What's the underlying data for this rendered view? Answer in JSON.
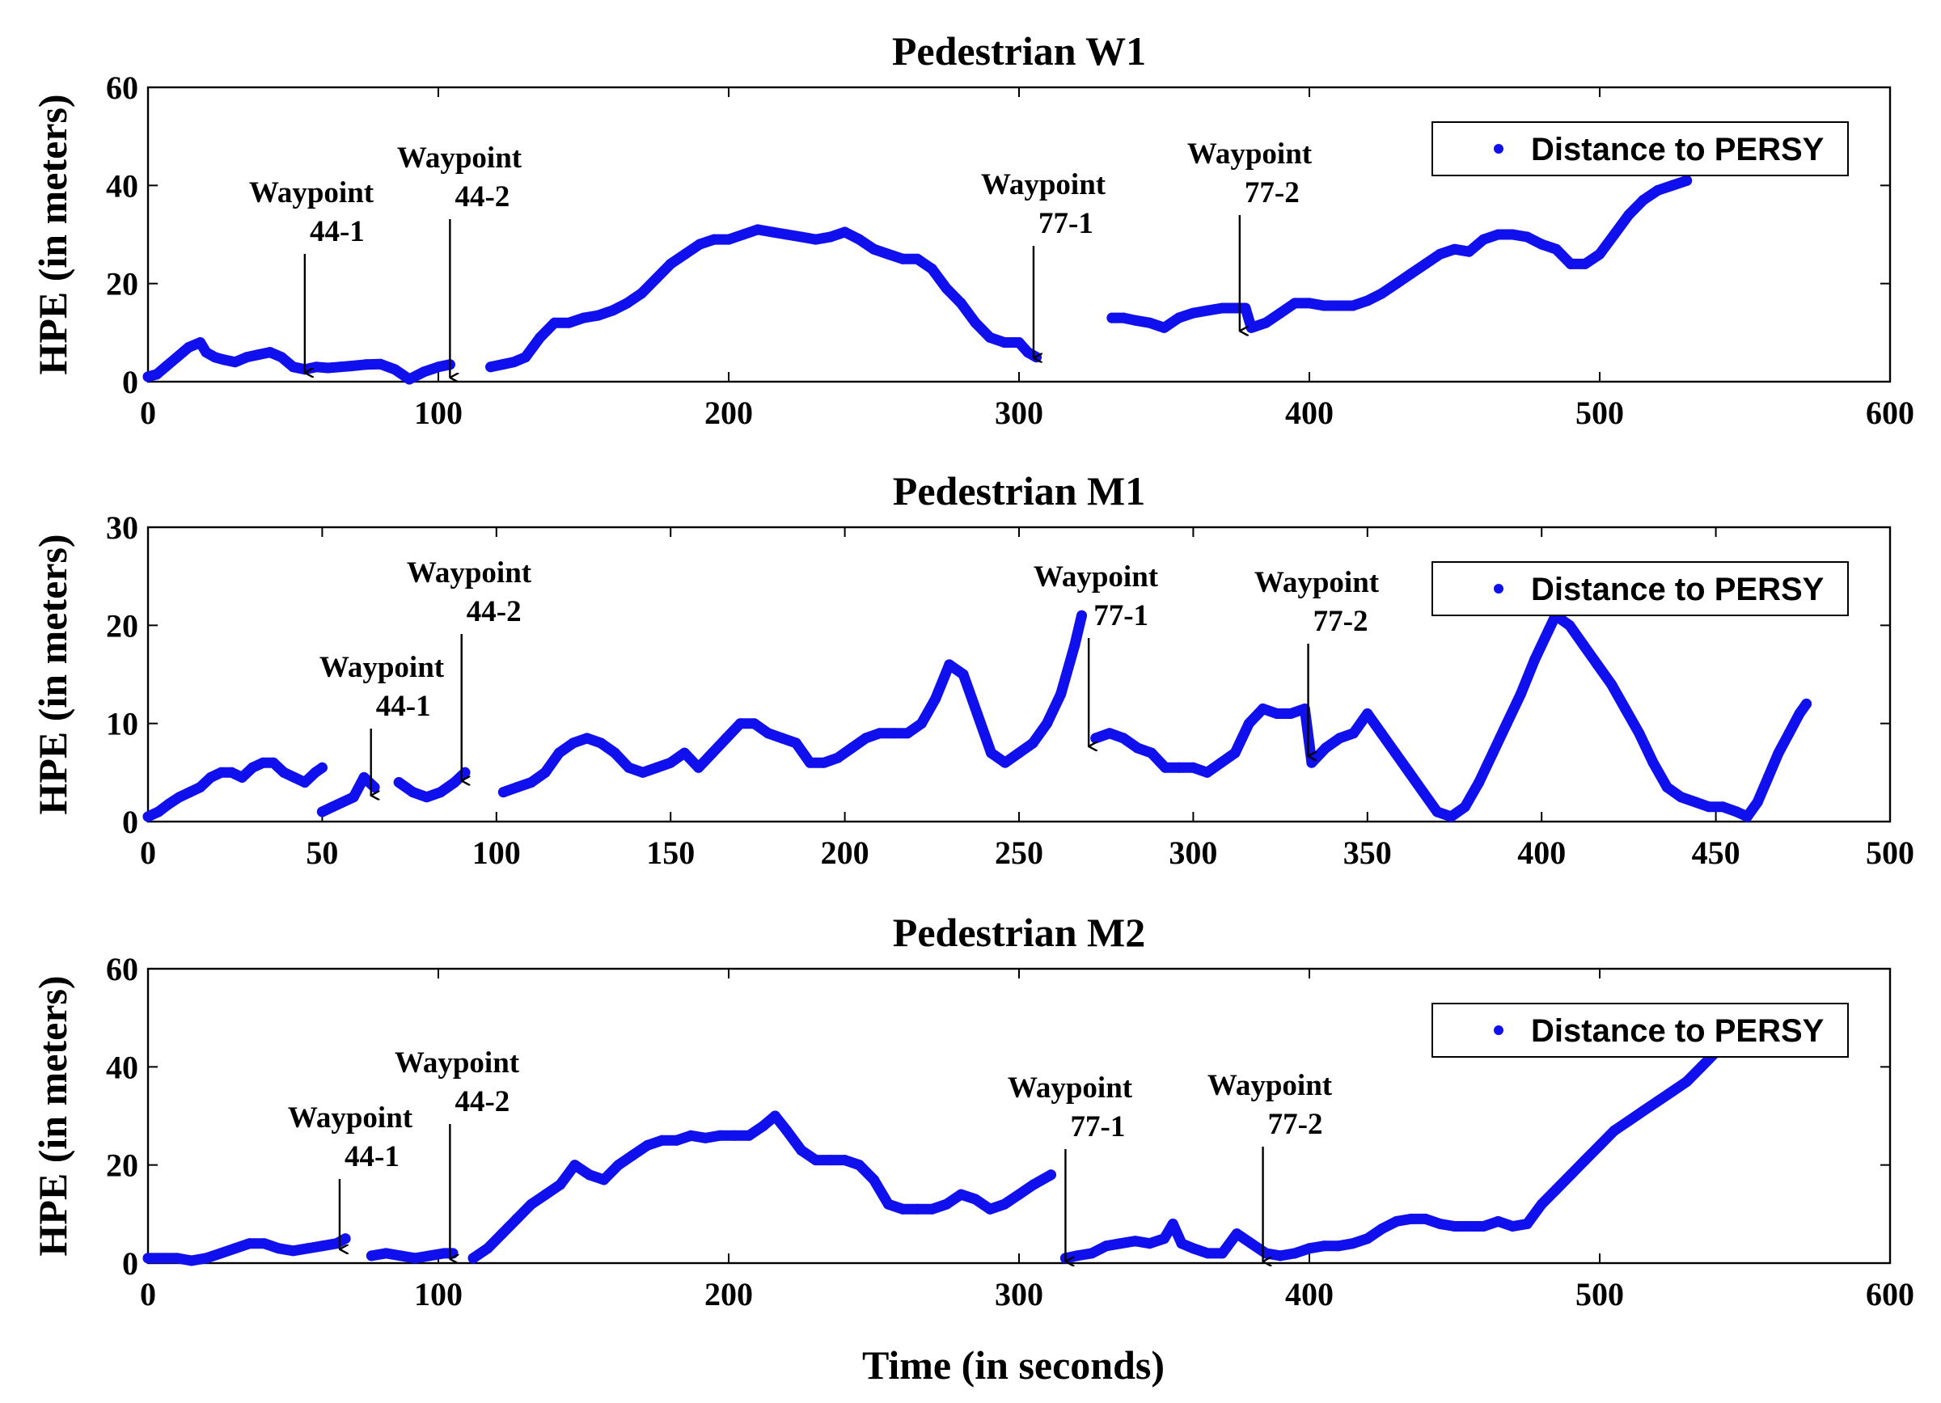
{
  "figure": {
    "xlabel": "Time (in seconds)",
    "series_color": "#1010ee"
  },
  "chart_data": [
    {
      "type": "scatter",
      "title": "Pedestrian W1",
      "xlabel": "",
      "ylabel": "HPE (in meters)",
      "xlim": [
        0,
        600
      ],
      "ylim": [
        0,
        60
      ],
      "xticks": [
        "0",
        "100",
        "200",
        "300",
        "400",
        "500",
        "600"
      ],
      "yticks": [
        "0",
        "20",
        "40",
        "60"
      ],
      "legend": {
        "label": "Distance to PERSY",
        "loc": "top-right"
      },
      "series": [
        {
          "name": "Distance to PERSY",
          "x": [
            0,
            3,
            6,
            10,
            14,
            18,
            20,
            23,
            26,
            30,
            34,
            38,
            42,
            46,
            50,
            54,
            58,
            62,
            66,
            70,
            75,
            80,
            85,
            90,
            95,
            100,
            104
          ],
          "y": [
            1,
            1.5,
            3,
            5,
            7,
            8,
            6,
            5,
            4.5,
            4,
            5,
            5.5,
            6,
            5,
            3,
            2.5,
            3,
            2.8,
            3,
            3.2,
            3.5,
            3.6,
            2.5,
            0.5,
            2,
            3,
            3.5
          ]
        },
        {
          "name": "Distance to PERSY",
          "x": [
            118,
            122,
            126,
            130,
            135,
            140,
            145,
            150,
            155,
            160,
            165,
            170,
            175,
            180,
            185,
            190,
            195,
            200,
            205,
            210,
            215,
            220,
            225,
            230,
            235,
            240,
            245,
            250,
            255,
            260,
            265,
            270,
            275,
            280,
            285,
            290,
            295,
            300,
            303,
            306
          ],
          "y": [
            3,
            3.5,
            4,
            5,
            9,
            12,
            12,
            13,
            13.5,
            14.5,
            16,
            18,
            21,
            24,
            26,
            28,
            29,
            29,
            30,
            31,
            30.5,
            30,
            29.5,
            29,
            29.5,
            30.5,
            29,
            27,
            26,
            25,
            25,
            23,
            19,
            16,
            12,
            9,
            8,
            8,
            6,
            5
          ]
        },
        {
          "name": "Distance to PERSY",
          "x": [
            332,
            336,
            340,
            345,
            350,
            355,
            360,
            365,
            370,
            375,
            378,
            380,
            385,
            390,
            395,
            400,
            405,
            410,
            415,
            420,
            425,
            430,
            435,
            440,
            445,
            450,
            455,
            460,
            465,
            470,
            475,
            480,
            485,
            490,
            495,
            500,
            505,
            510,
            515,
            520,
            525,
            530
          ],
          "y": [
            13,
            13,
            12.5,
            12,
            11,
            13,
            14,
            14.5,
            15,
            15,
            15,
            11,
            12,
            14,
            16,
            16,
            15.5,
            15.5,
            15.5,
            16.5,
            18,
            20,
            22,
            24,
            26,
            27,
            26.5,
            29,
            30,
            30,
            29.5,
            28,
            27,
            24,
            24,
            26,
            30,
            34,
            37,
            39,
            40,
            41
          ]
        }
      ],
      "annotations": [
        {
          "lines": [
            "Waypoint",
            "44-1"
          ],
          "x": 54,
          "y": 1.5
        },
        {
          "lines": [
            "Waypoint",
            "44-2"
          ],
          "x": 104,
          "y": 0.5
        },
        {
          "lines": [
            "Waypoint",
            "77-1"
          ],
          "x": 305,
          "y": 4.5
        },
        {
          "lines": [
            "Waypoint",
            "77-2"
          ],
          "x": 376,
          "y": 10
        }
      ]
    },
    {
      "type": "scatter",
      "title": "Pedestrian M1",
      "xlabel": "",
      "ylabel": "HPE (in meters)",
      "xlim": [
        0,
        500
      ],
      "ylim": [
        0,
        30
      ],
      "xticks": [
        "0",
        "50",
        "100",
        "150",
        "200",
        "250",
        "300",
        "350",
        "400",
        "450",
        "500"
      ],
      "yticks": [
        "0",
        "10",
        "20",
        "30"
      ],
      "legend": {
        "label": "Distance to PERSY",
        "loc": "top-right"
      },
      "series": [
        {
          "name": "Distance to PERSY",
          "x": [
            0,
            3,
            6,
            9,
            12,
            15,
            18,
            21,
            24,
            27,
            30,
            33,
            36,
            39,
            42,
            45,
            48,
            50
          ],
          "y": [
            0.5,
            1,
            1.8,
            2.5,
            3,
            3.5,
            4.5,
            5,
            5,
            4.5,
            5.5,
            6,
            6,
            5,
            4.5,
            4,
            5,
            5.5
          ]
        },
        {
          "name": "Distance to PERSY",
          "x": [
            50,
            53,
            56,
            59,
            62,
            65
          ],
          "y": [
            1,
            1.5,
            2,
            2.5,
            4.5,
            3.5
          ]
        },
        {
          "name": "Distance to PERSY",
          "x": [
            72,
            76,
            80,
            84,
            88,
            91
          ],
          "y": [
            4,
            3,
            2.5,
            3,
            4,
            5
          ]
        },
        {
          "name": "Distance to PERSY",
          "x": [
            102,
            106,
            110,
            114,
            118,
            122,
            126,
            130,
            134,
            138,
            142,
            146,
            150,
            154,
            158,
            162,
            166,
            170,
            174,
            178,
            182,
            186,
            190,
            194,
            198,
            202,
            206,
            210,
            214,
            218,
            222,
            226,
            230,
            234,
            238,
            242,
            246,
            250,
            254,
            258,
            262,
            266,
            268
          ],
          "y": [
            3,
            3.5,
            4,
            5,
            7,
            8,
            8.5,
            8,
            7,
            5.5,
            5,
            5.5,
            6,
            7,
            5.5,
            7,
            8.5,
            10,
            10,
            9,
            8.5,
            8,
            6,
            6,
            6.5,
            7.5,
            8.5,
            9,
            9,
            9,
            10,
            12.5,
            16,
            15,
            11,
            7,
            6,
            7,
            8,
            10,
            13,
            18,
            21
          ]
        },
        {
          "name": "Distance to PERSY",
          "x": [
            272,
            276,
            280,
            284,
            288,
            292,
            296,
            300,
            304,
            308,
            312,
            316,
            320,
            324,
            328,
            332,
            334,
            338,
            342,
            346,
            350,
            354,
            358,
            362,
            366,
            370,
            374,
            378,
            382,
            386,
            390,
            394,
            398,
            402,
            404,
            408,
            412,
            416,
            420,
            424,
            428,
            432,
            436,
            440,
            444,
            448,
            452,
            456,
            459,
            462,
            465,
            468,
            471,
            474,
            476
          ],
          "y": [
            8.5,
            9,
            8.5,
            7.5,
            7,
            5.5,
            5.5,
            5.5,
            5,
            6,
            7,
            10,
            11.5,
            11,
            11,
            11.5,
            6,
            7.5,
            8.5,
            9,
            11,
            9,
            7,
            5,
            3,
            1,
            0.5,
            1.5,
            4,
            7,
            10,
            13,
            16.5,
            19.5,
            21,
            20,
            18,
            16,
            14,
            11.5,
            9,
            6,
            3.5,
            2.5,
            2,
            1.5,
            1.5,
            1,
            0.5,
            2,
            4.5,
            7,
            9,
            11,
            12
          ]
        }
      ],
      "annotations": [
        {
          "lines": [
            "Waypoint",
            "44-1"
          ],
          "x": 64,
          "y": 2.5
        },
        {
          "lines": [
            "Waypoint",
            "44-2"
          ],
          "x": 90,
          "y": 4
        },
        {
          "lines": [
            "Waypoint",
            "77-1"
          ],
          "x": 270,
          "y": 7.5
        },
        {
          "lines": [
            "Waypoint",
            "77-2"
          ],
          "x": 333,
          "y": 6.5
        }
      ]
    },
    {
      "type": "scatter",
      "title": "Pedestrian M2",
      "xlabel": "Time (in seconds)",
      "ylabel": "HPE (in meters)",
      "xlim": [
        0,
        600
      ],
      "ylim": [
        0,
        60
      ],
      "xticks": [
        "0",
        "100",
        "200",
        "300",
        "400",
        "500",
        "600"
      ],
      "yticks": [
        "0",
        "20",
        "40",
        "60"
      ],
      "legend": {
        "label": "Distance to PERSY",
        "loc": "top-right"
      },
      "series": [
        {
          "name": "Distance to PERSY",
          "x": [
            0,
            5,
            10,
            15,
            20,
            25,
            30,
            35,
            40,
            45,
            50,
            55,
            60,
            65,
            68
          ],
          "y": [
            1,
            1,
            1,
            0.5,
            1,
            2,
            3,
            4,
            4,
            3,
            2.5,
            3,
            3.5,
            4,
            5
          ]
        },
        {
          "name": "Distance to PERSY",
          "x": [
            77,
            82,
            87,
            92,
            97,
            102,
            105
          ],
          "y": [
            1.5,
            2,
            1.5,
            1,
            1.5,
            2,
            2
          ]
        },
        {
          "name": "Distance to PERSY",
          "x": [
            112,
            117,
            122,
            127,
            132,
            137,
            142,
            147,
            152,
            157,
            162,
            167,
            172,
            177,
            182,
            187,
            192,
            197,
            202,
            207,
            212,
            216,
            220,
            225,
            230,
            235,
            240,
            245,
            250,
            255,
            260,
            265,
            270,
            275,
            280,
            285,
            290,
            295,
            300,
            305,
            311
          ],
          "y": [
            1,
            3,
            6,
            9,
            12,
            14,
            16,
            20,
            18,
            17,
            20,
            22,
            24,
            25,
            25,
            26,
            25.5,
            26,
            26,
            26,
            28,
            30,
            27,
            23,
            21,
            21,
            21,
            20,
            17,
            12,
            11,
            11,
            11,
            12,
            14,
            13,
            11,
            12,
            14,
            16,
            18
          ]
        },
        {
          "name": "Distance to PERSY",
          "x": [
            316,
            320,
            325,
            330,
            335,
            340,
            345,
            350,
            353,
            356,
            360,
            365,
            370,
            375,
            380,
            385,
            390,
            395,
            400,
            405,
            410,
            415,
            420,
            425,
            430,
            435,
            440,
            445,
            450,
            455,
            460,
            465,
            470,
            475,
            480,
            485,
            490,
            495,
            500,
            505,
            510,
            515,
            520,
            525,
            530,
            535,
            540
          ],
          "y": [
            1,
            1.5,
            2,
            3.5,
            4,
            4.5,
            4,
            5,
            8,
            4,
            3,
            2,
            2,
            6,
            4,
            2,
            1.5,
            2,
            3,
            3.5,
            3.5,
            4,
            5,
            7,
            8.5,
            9,
            9,
            8,
            7.5,
            7.5,
            7.5,
            8.5,
            7.5,
            8,
            12,
            15,
            18,
            21,
            24,
            27,
            29,
            31,
            33,
            35,
            37,
            40,
            43
          ]
        }
      ],
      "annotations": [
        {
          "lines": [
            "Waypoint",
            "44-1"
          ],
          "x": 66,
          "y": 2.5
        },
        {
          "lines": [
            "Waypoint",
            "44-2"
          ],
          "x": 104,
          "y": 0.5
        },
        {
          "lines": [
            "Waypoint",
            "77-1"
          ],
          "x": 316,
          "y": 0
        },
        {
          "lines": [
            "Waypoint",
            "77-2"
          ],
          "x": 384,
          "y": 0
        }
      ]
    }
  ]
}
